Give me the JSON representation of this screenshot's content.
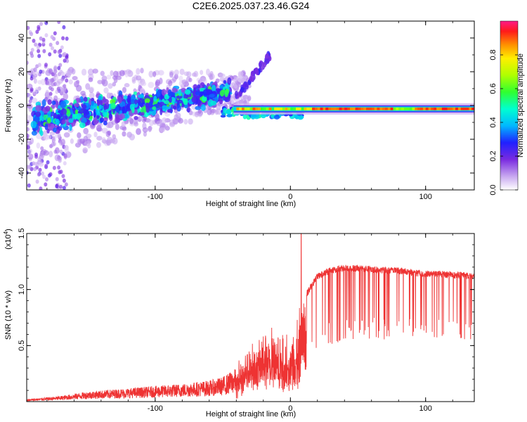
{
  "title": "C2E6.2025.037.23.46.G24",
  "chart_data": [
    {
      "type": "heatmap",
      "name": "spectrogram",
      "xlabel": "Height of straight line (km)",
      "ylabel": "Frequency (Hz)",
      "xlim": [
        -195,
        136
      ],
      "ylim": [
        -50,
        50
      ],
      "xticks": [
        -100,
        0,
        100
      ],
      "xtick_labels": [
        "-100",
        "0",
        "100"
      ],
      "yticks": [
        -40,
        -20,
        0,
        20,
        40
      ],
      "ytick_labels": [
        "-40",
        "-20",
        "0",
        "20",
        "40"
      ],
      "colorbar": {
        "label": "Normalized spectral amplitude",
        "range": [
          0,
          1
        ],
        "ticks": [
          0.0,
          0.2,
          0.4,
          0.6,
          0.8
        ],
        "tick_labels": [
          "0.0",
          "0.2",
          "0.4",
          "0.6",
          "0.8"
        ]
      },
      "features": {
        "scattered_region_x": [
          -195,
          -50
        ],
        "scattered_center_freq_start": -8,
        "scattered_center_freq_end": 8,
        "rising_arc_x": [
          -40,
          -15
        ],
        "rising_arc_freq": [
          5,
          30
        ],
        "steady_line_x": [
          -50,
          136
        ],
        "steady_line_freq": -2,
        "steady_line_peak_x": [
          15,
          136
        ],
        "steady_line_peak_amplitude": 0.95
      }
    },
    {
      "type": "line",
      "name": "snr",
      "xlabel": "Height of straight line (km)",
      "ylabel": "SNR (10 * v/v)",
      "multiplier": "(x10",
      "multiplier_exp": "4",
      "multiplier_close": ")",
      "xlim": [
        -195,
        136
      ],
      "ylim": [
        0,
        1.5
      ],
      "xticks": [
        -100,
        0,
        100
      ],
      "xtick_labels": [
        "-100",
        "0",
        "100"
      ],
      "yticks": [
        0.5,
        1.0,
        1.5
      ],
      "ytick_labels": [
        "0.5",
        "1.0",
        "1.5"
      ],
      "color": "#ee3333",
      "envelope": {
        "x": [
          -195,
          -170,
          -150,
          -120,
          -100,
          -80,
          -60,
          -50,
          -40,
          -30,
          -20,
          -12,
          -5,
          0,
          5,
          10,
          15,
          20,
          30,
          40,
          50,
          60,
          70,
          80,
          90,
          100,
          110,
          120,
          136
        ],
        "y": [
          0.02,
          0.05,
          0.09,
          0.12,
          0.14,
          0.16,
          0.19,
          0.22,
          0.3,
          0.5,
          0.6,
          0.7,
          0.65,
          0.6,
          0.75,
          0.95,
          1.05,
          1.15,
          1.2,
          1.22,
          1.22,
          1.21,
          1.2,
          1.2,
          1.18,
          1.17,
          1.17,
          1.16,
          1.15
        ],
        "dip": [
          0.0,
          0.0,
          0.0,
          0.0,
          0.05,
          0.05,
          0.08,
          0.12,
          0.25,
          0.35,
          0.45,
          0.55,
          0.55,
          0.45,
          0.6,
          0.65,
          0.7,
          0.7,
          0.7,
          0.7,
          0.65,
          0.65,
          0.65,
          0.65,
          0.6,
          0.6,
          0.6,
          0.6,
          0.65
        ]
      },
      "peak": {
        "x": 8,
        "y": 1.5
      }
    }
  ]
}
